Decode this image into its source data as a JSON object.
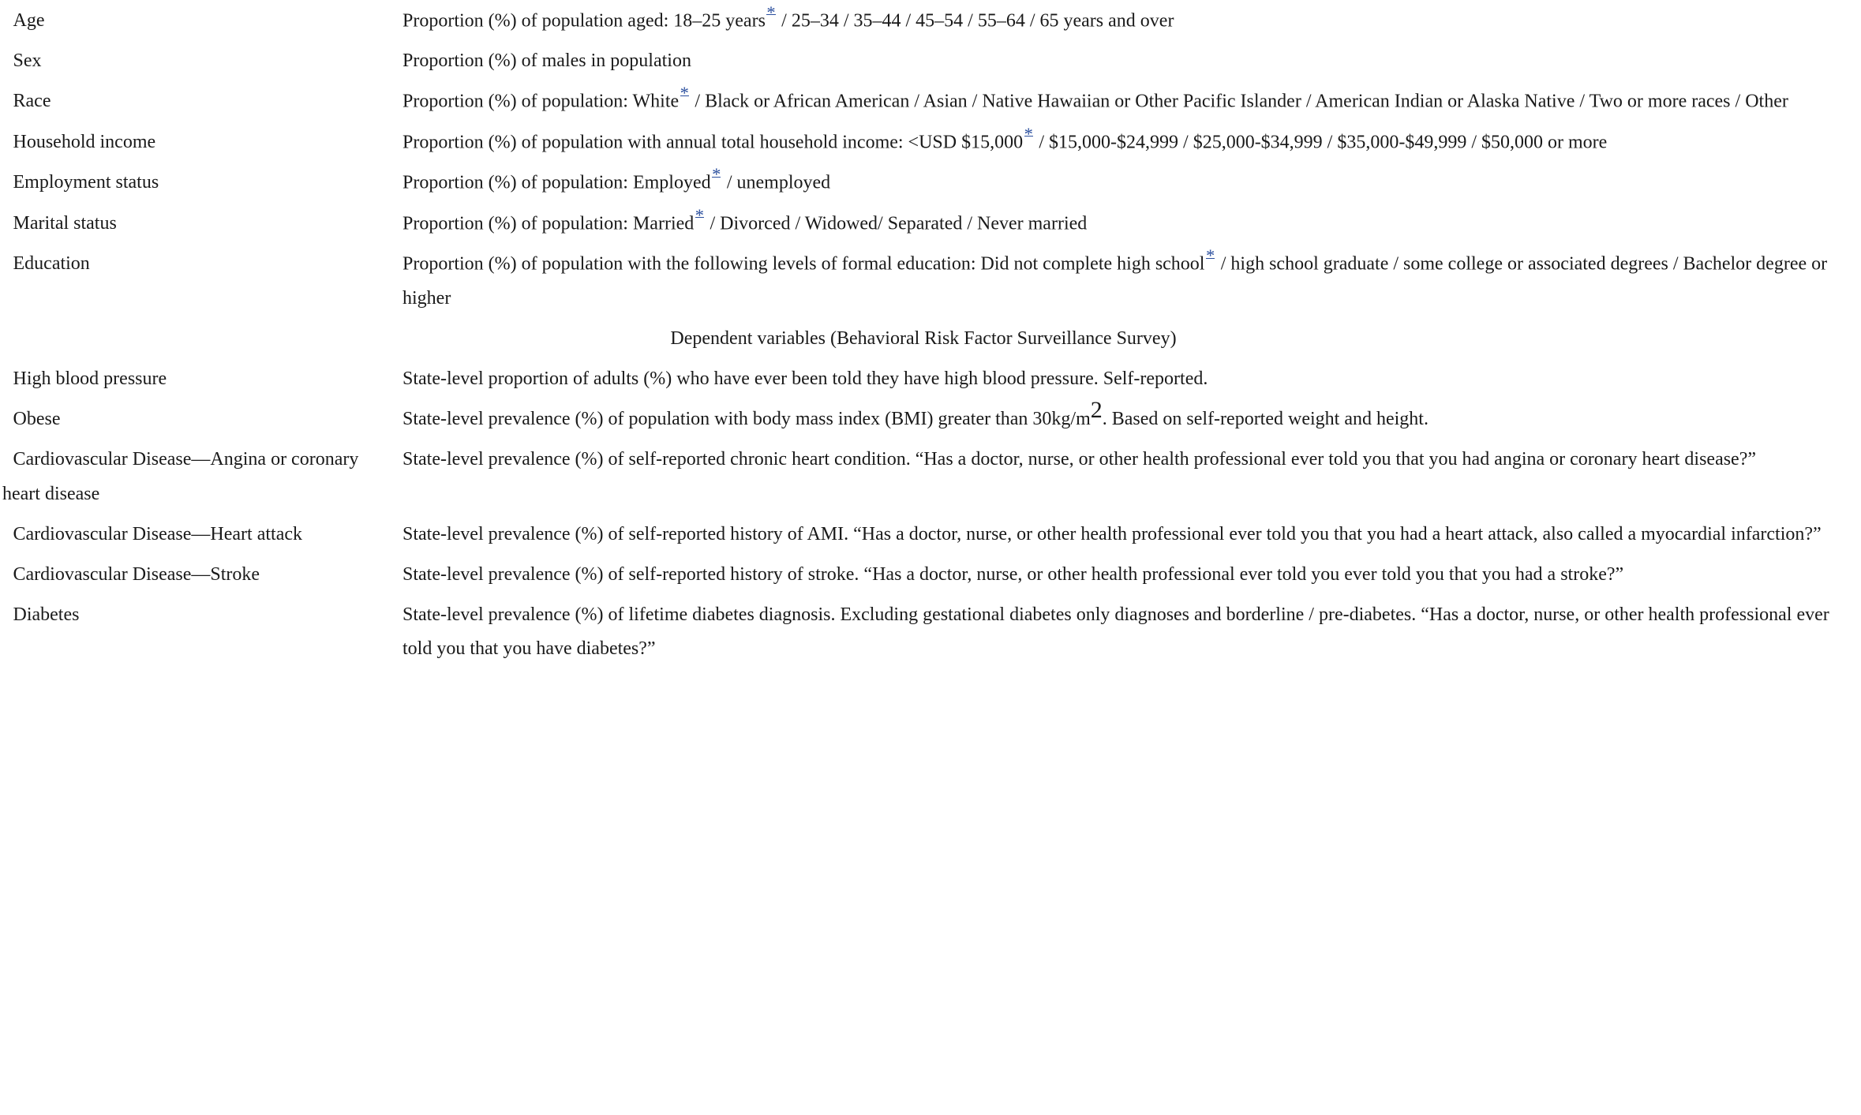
{
  "rows_top": [
    {
      "label": "Age",
      "desc_before": "Proportion (%) of population aged: 18–25 years",
      "footnote": "*",
      "desc_after": " / 25–34 / 35–44 / 45–54 / 55–64 / 65 years and over"
    },
    {
      "label": "Sex",
      "desc_before": "Proportion (%) of males in population",
      "footnote": "",
      "desc_after": ""
    },
    {
      "label": "Race",
      "desc_before": "Proportion (%) of population: White",
      "footnote": "*",
      "desc_after": " / Black or African American / Asian / Native Hawaiian or Other Pacific Islander / American Indian or Alaska Native / Two or more races / Other"
    },
    {
      "label": "Household income",
      "desc_before": "Proportion (%) of population with annual total household income: <USD $15,000",
      "footnote": "*",
      "desc_after": " / $15,000-$24,999 / $25,000-$34,999 / $35,000-$49,999 / $50,000 or more"
    },
    {
      "label": "Employment status",
      "desc_before": "Proportion (%) of population: Employed",
      "footnote": "*",
      "desc_after": " / unemployed"
    },
    {
      "label": "Marital status",
      "desc_before": "Proportion (%) of population: Married",
      "footnote": "*",
      "desc_after": " / Divorced / Widowed/ Separated / Never married"
    },
    {
      "label": "Education",
      "desc_before": "Proportion (%) of population with the following levels of formal education: Did not complete high school",
      "footnote": "*",
      "desc_after": " / high school graduate / some college or associated degrees / Bachelor degree or higher"
    }
  ],
  "section_heading": "Dependent variables (Behavioral Risk Factor Surveillance Survey)",
  "rows_bottom": [
    {
      "label": "High blood pressure",
      "desc": "State-level proportion of adults (%) who have ever been told they have high blood pressure. Self-reported."
    },
    {
      "label": "Obese",
      "desc_before": "State-level prevalence (%) of population with body mass index (BMI) greater than 30kg/m",
      "sup": "2",
      "desc_after": ". Based on self-reported weight and height."
    },
    {
      "label": "Cardiovascular Disease—Angina or coronary heart disease",
      "desc": "State-level prevalence (%) of self-reported chronic heart condition. “Has a doctor, nurse, or other health professional ever told you that you had angina or coronary heart disease?”"
    },
    {
      "label": "Cardiovascular Disease—Heart attack",
      "desc": "State-level prevalence (%) of self-reported history of AMI. “Has a doctor, nurse, or other health professional ever told you that you had a heart attack, also called a myocardial infarction?”"
    },
    {
      "label": "Cardiovascular Disease—Stroke",
      "desc": "State-level prevalence (%) of self-reported history of stroke. “Has a doctor, nurse, or other health professional ever told you ever told you that you had a stroke?”"
    },
    {
      "label": "Diabetes",
      "desc": "State-level prevalence (%) of lifetime diabetes diagnosis. Excluding gestational diabetes only diagnoses and borderline / pre-diabetes. “Has a doctor, nurse, or other health professional ever told you that you have diabetes?”"
    }
  ],
  "colors": {
    "footnote_link": "#2b4f9e",
    "text": "#1a1a1a"
  }
}
